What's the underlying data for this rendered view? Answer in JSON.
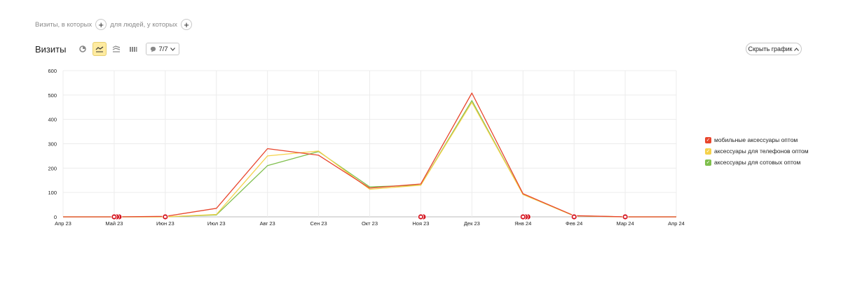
{
  "filters": {
    "visits_label": "Визиты, в которых",
    "people_label": "для людей, у которых"
  },
  "toolbar": {
    "title": "Визиты",
    "notes_count": "7/7"
  },
  "hide_button": {
    "label": "Скрыть график"
  },
  "colors": {
    "series1": "#e8452c",
    "series2": "#f5d24b",
    "series3": "#7fbf4d",
    "grid": "#ececec",
    "marker": "#d4121d"
  },
  "chart_data": {
    "type": "line",
    "categories": [
      "Апр 23",
      "Май 23",
      "Июн 23",
      "Июл 23",
      "Авг 23",
      "Сен 23",
      "Окт 23",
      "Ноя 23",
      "Дек 23",
      "Янв 24",
      "Фев 24",
      "Мар 24",
      "Апр 24"
    ],
    "yticks": [
      "0",
      "100",
      "200",
      "300",
      "400",
      "500",
      "600"
    ],
    "ylim": [
      0,
      600
    ],
    "grid": true,
    "legend_position": "right",
    "series": [
      {
        "name": "мобильные аксессуары оптом",
        "color": "#e8452c",
        "values": [
          0,
          0,
          2,
          35,
          280,
          253,
          118,
          135,
          508,
          95,
          5,
          0,
          0
        ]
      },
      {
        "name": "аксессуары для телефонов оптом",
        "color": "#f5d24b",
        "values": [
          0,
          0,
          0,
          10,
          250,
          270,
          113,
          130,
          470,
          92,
          4,
          0,
          0
        ]
      },
      {
        "name": "аксессуары для сотовых оптом",
        "color": "#7fbf4d",
        "values": [
          0,
          0,
          0,
          8,
          210,
          268,
          123,
          130,
          477,
          92,
          4,
          0,
          0
        ]
      }
    ],
    "annotations": [
      {
        "x": "Май 23",
        "count": 3
      },
      {
        "x": "Июн 23",
        "count": 1
      },
      {
        "x": "Ноя 23",
        "count": 2
      },
      {
        "x": "Янв 24",
        "count": 3
      },
      {
        "x": "Фев 24",
        "count": 1
      },
      {
        "x": "Мар 24",
        "count": 1
      }
    ]
  }
}
